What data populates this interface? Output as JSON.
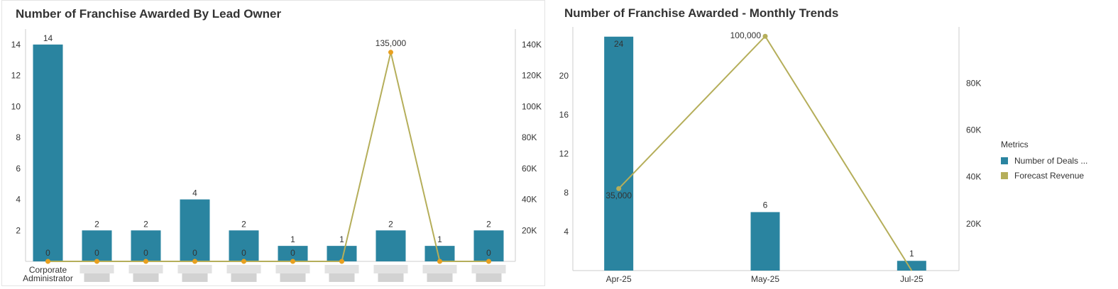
{
  "colors": {
    "bar": "#2a84a0",
    "line": "#b5ae5a",
    "marker_left": "#e8a020",
    "axis": "#cccccc",
    "text": "#333333"
  },
  "left_panel": {
    "title": "Number of Franchise Awarded By Lead Owner"
  },
  "right_panel": {
    "title": "Number of Franchise Awarded - Monthly Trends"
  },
  "legend": {
    "title": "Metrics",
    "items": [
      {
        "label": "Number of Deals ...",
        "color": "#2a84a0"
      },
      {
        "label": "Forecast Revenue",
        "color": "#b5ae5a"
      }
    ]
  },
  "chart_data": [
    {
      "type": "bar",
      "title": "Number of Franchise Awarded By Lead Owner",
      "categories": [
        "Corporate Administrator",
        "",
        "",
        "",
        "",
        "",
        "",
        "",
        "",
        ""
      ],
      "series": [
        {
          "type": "bar",
          "axis": "left",
          "values": [
            14,
            2,
            2,
            4,
            2,
            1,
            1,
            2,
            1,
            2
          ]
        },
        {
          "type": "line",
          "axis": "right",
          "values": [
            0,
            0,
            0,
            0,
            0,
            0,
            0,
            135000,
            0,
            0
          ],
          "value_labels": [
            "0",
            "0",
            "0",
            "0",
            "0",
            "0",
            "",
            "135,000",
            "",
            "0"
          ]
        }
      ],
      "y_left": {
        "range": [
          0,
          15
        ],
        "ticks": [
          "2",
          "4",
          "6",
          "8",
          "10",
          "12",
          "14"
        ]
      },
      "y_right": {
        "range": [
          0,
          150000
        ],
        "ticks": [
          "20K",
          "40K",
          "60K",
          "80K",
          "100K",
          "120K",
          "140K"
        ]
      }
    },
    {
      "type": "bar",
      "title": "Number of Franchise Awarded - Monthly Trends",
      "categories": [
        "Apr-25",
        "May-25",
        "Jul-25"
      ],
      "series": [
        {
          "name": "Number of Deals ...",
          "type": "bar",
          "axis": "left",
          "values": [
            24,
            6,
            1
          ]
        },
        {
          "name": "Forecast Revenue",
          "type": "line",
          "axis": "right",
          "values": [
            35000,
            100000,
            0
          ],
          "value_labels": [
            "35,000",
            "100,000",
            ""
          ]
        }
      ],
      "y_left": {
        "range": [
          0,
          24
        ],
        "ticks": [
          "4",
          "8",
          "12",
          "16",
          "20"
        ]
      },
      "y_right": {
        "range": [
          0,
          100000
        ],
        "ticks": [
          "20K",
          "40K",
          "60K",
          "80K"
        ]
      },
      "legend_position": "right"
    }
  ]
}
